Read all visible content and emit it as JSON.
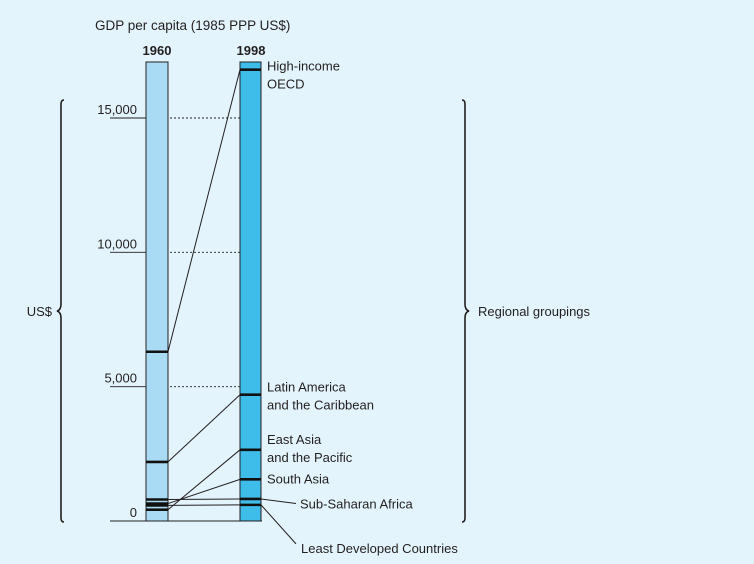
{
  "chart_data": {
    "type": "slope",
    "title": "GDP per capita (1985 PPP US$)",
    "columns": [
      "1960",
      "1998"
    ],
    "ylim": [
      0,
      17000
    ],
    "yticks": [
      {
        "value": 15000,
        "label": "15,000"
      },
      {
        "value": 10000,
        "label": "10,000"
      },
      {
        "value": 5000,
        "label": "5,000"
      },
      {
        "value": 0,
        "label": "0"
      }
    ],
    "grid": "dotted at major ticks",
    "left_group_label": "US$",
    "right_group_label": "Regional groupings",
    "colors": {
      "background": "#e3f4fc",
      "bar_1960": "#a9dcf4",
      "bar_1998": "#3fbdea",
      "text": "#231f20"
    },
    "series": [
      {
        "name": "High-income OECD",
        "label_lines": [
          "High-income",
          "OECD"
        ],
        "v1960": 6300,
        "v1998": 16800,
        "label_value": 16700,
        "leader": false
      },
      {
        "name": "Latin America and the Caribbean",
        "label_lines": [
          "Latin America",
          "and the Caribbean"
        ],
        "v1960": 2200,
        "v1998": 4700,
        "label_value": 4750,
        "leader": false
      },
      {
        "name": "East Asia and the Pacific",
        "label_lines": [
          "East Asia",
          "and the Pacific"
        ],
        "v1960": 420,
        "v1998": 2650,
        "label_value": 2800,
        "leader": false
      },
      {
        "name": "South Asia",
        "label_lines": [
          "South Asia"
        ],
        "v1960": 650,
        "v1998": 1550,
        "label_value": 1550,
        "leader": false
      },
      {
        "name": "Sub-Saharan Africa",
        "label_lines": [
          "Sub-Saharan Africa"
        ],
        "v1960": 800,
        "v1998": 820,
        "label_value": 650,
        "leader": true
      },
      {
        "name": "Least Developed Countries",
        "label_lines": [
          "Least Developed Countries"
        ],
        "v1960": 580,
        "v1998": 600,
        "label_value": -1000,
        "leader": true
      }
    ]
  }
}
